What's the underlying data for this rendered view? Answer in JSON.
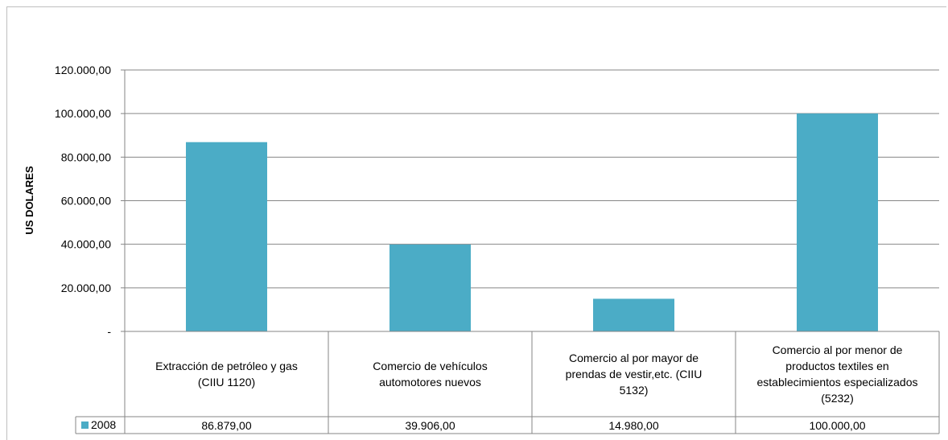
{
  "chart_data": {
    "type": "bar",
    "ylabel": "US DOLARES",
    "categories": [
      [
        "Extracción de petróleo y gas",
        "(CIIU 1120)"
      ],
      [
        "Comercio de vehículos",
        "automotores nuevos"
      ],
      [
        "Comercio al por mayor de",
        "prendas de vestir,etc. (CIIU",
        "5132)"
      ],
      [
        "Comercio al por menor de",
        "productos textiles en",
        "establecimientos especializados",
        "(5232)"
      ]
    ],
    "series": [
      {
        "name": "2008",
        "color": "#4bacc6",
        "values": [
          86879,
          39906,
          14980,
          100000
        ],
        "value_labels": [
          "86.879,00",
          "39.906,00",
          "14.980,00",
          "100.000,00"
        ]
      }
    ],
    "ylim": [
      0,
      120000
    ],
    "yticks": [
      0,
      20000,
      40000,
      60000,
      80000,
      100000,
      120000
    ],
    "ytick_labels": [
      "-",
      "20.000,00",
      "40.000,00",
      "60.000,00",
      "80.000,00",
      "100.000,00",
      "120.000,00"
    ],
    "grid": true,
    "legend": "data-table"
  }
}
